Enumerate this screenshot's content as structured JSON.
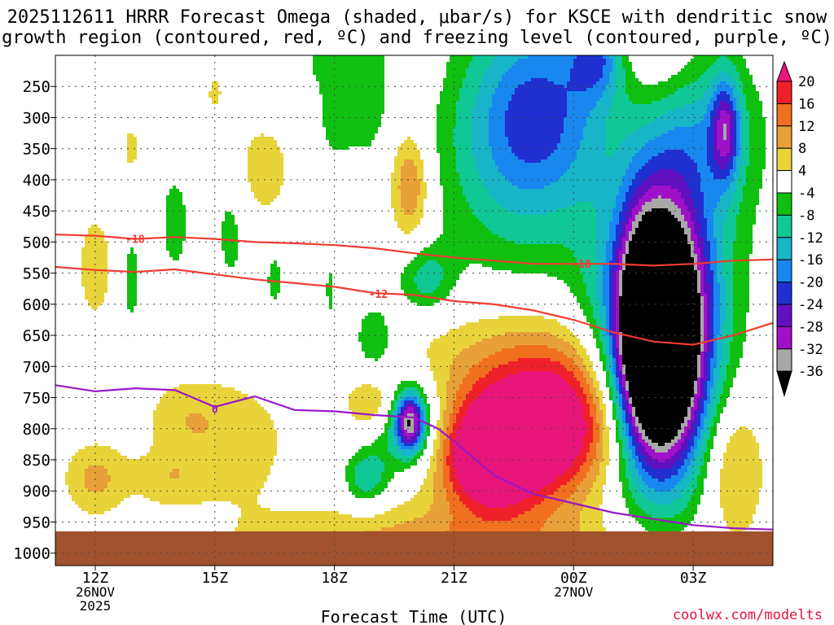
{
  "title": {
    "line1": "2025112611 HRRR Forecast Omega (shaded, μbar/s) for KSCE with dendritic snow",
    "line2": "growth region (contoured, red, ºC) and freezing level (contoured, purple, ºC)"
  },
  "credit": "coolwx.com/modelts",
  "chart_data": {
    "type": "heatmap",
    "title": "2025112611 HRRR Forecast Omega (shaded, μbar/s) for KSCE with dendritic snow growth region (contoured, red, ºC) and freezing level (contoured, purple, ºC)",
    "xlabel": "Forecast Time (UTC)",
    "ylabel": "",
    "x_ticks": [
      {
        "hour": 0,
        "label": "12Z",
        "sub1": "26NOV",
        "sub2": "2025"
      },
      {
        "hour": 3,
        "label": "15Z",
        "sub1": "",
        "sub2": ""
      },
      {
        "hour": 6,
        "label": "18Z",
        "sub1": "",
        "sub2": ""
      },
      {
        "hour": 9,
        "label": "21Z",
        "sub1": "",
        "sub2": ""
      },
      {
        "hour": 12,
        "label": "00Z",
        "sub1": "27NOV",
        "sub2": ""
      },
      {
        "hour": 15,
        "label": "03Z",
        "sub1": "",
        "sub2": ""
      }
    ],
    "xlim_hours": [
      -1,
      17
    ],
    "y_ticks": [
      250,
      300,
      350,
      400,
      450,
      500,
      550,
      600,
      650,
      700,
      750,
      800,
      850,
      900,
      950,
      1000
    ],
    "ylim_hpa": [
      200,
      1020
    ],
    "grid": true,
    "legend_position": "right colorbar",
    "colorbar": {
      "labels": [
        20,
        16,
        12,
        8,
        4,
        -4,
        -8,
        -12,
        -16,
        -20,
        -24,
        -28,
        -32,
        -36
      ],
      "colors": [
        "#e8157a",
        "#f02028",
        "#f07020",
        "#e8a038",
        "#e8d43a",
        "#ffffff",
        "#10c010",
        "#10c896",
        "#18b4c8",
        "#1888f0",
        "#2030d0",
        "#6010c0",
        "#a010c8",
        "#a8a8a8",
        "#000000"
      ]
    },
    "ground_color": "#a0522d",
    "surface_hpa": 965,
    "omega_blobs": [
      {
        "t": 0.0,
        "p": 540,
        "rt": 0.55,
        "rp": 105,
        "v": 6
      },
      {
        "t": 0.0,
        "p": 880,
        "rt": 0.8,
        "rp": 60,
        "v": 9
      },
      {
        "t": 1.8,
        "p": 880,
        "rt": 0.9,
        "rp": 45,
        "v": 6
      },
      {
        "t": 0.9,
        "p": 350,
        "rt": 0.3,
        "rp": 55,
        "v": 5
      },
      {
        "t": 3.0,
        "p": 260,
        "rt": 0.25,
        "rp": 40,
        "v": 5
      },
      {
        "t": 4.2,
        "p": 385,
        "rt": 0.85,
        "rp": 90,
        "v": 6
      },
      {
        "t": 3.5,
        "p": 820,
        "rt": 1.6,
        "rp": 110,
        "v": 6
      },
      {
        "t": 2.2,
        "p": 780,
        "rt": 1.0,
        "rp": 60,
        "v": 5
      },
      {
        "t": 8.1,
        "p": 230,
        "rt": 0.5,
        "rp": 45,
        "v": 5
      },
      {
        "t": 7.9,
        "p": 410,
        "rt": 0.5,
        "rp": 90,
        "v": 13
      },
      {
        "t": 7.0,
        "p": 760,
        "rt": 0.65,
        "rp": 50,
        "v": 11
      },
      {
        "t": 9.0,
        "p": 1000,
        "rt": 5.0,
        "rp": 80,
        "v": 12
      },
      {
        "t": 11.4,
        "p": 800,
        "rt": 2.1,
        "rp": 110,
        "v": 28
      },
      {
        "t": 9.9,
        "p": 850,
        "rt": 1.2,
        "rp": 80,
        "v": 26
      },
      {
        "t": 11.0,
        "p": 690,
        "rt": 3.5,
        "rp": 100,
        "v": 8
      },
      {
        "t": 13.0,
        "p": 580,
        "rt": 0.5,
        "rp": 200,
        "v": 5
      },
      {
        "t": 14.8,
        "p": 230,
        "rt": 1.7,
        "rp": 100,
        "v": 8
      },
      {
        "t": 14.0,
        "p": 180,
        "rt": 1.0,
        "rp": 60,
        "v": 6
      },
      {
        "t": 16.0,
        "p": 860,
        "rt": 0.8,
        "rp": 110,
        "v": 11
      },
      {
        "t": 16.9,
        "p": 200,
        "rt": 0.4,
        "rp": 30,
        "v": 5
      },
      {
        "t": 2.0,
        "p": 470,
        "rt": 0.35,
        "rp": 80,
        "v": -7
      },
      {
        "t": 0.9,
        "p": 560,
        "rt": 0.28,
        "rp": 90,
        "v": -6
      },
      {
        "t": 3.4,
        "p": 480,
        "rt": 0.4,
        "rp": 100,
        "v": -6
      },
      {
        "t": 4.5,
        "p": 560,
        "rt": 0.25,
        "rp": 50,
        "v": -6
      },
      {
        "t": 5.9,
        "p": 580,
        "rt": 0.2,
        "rp": 70,
        "v": -5
      },
      {
        "t": 6.8,
        "p": 240,
        "rt": 0.6,
        "rp": 130,
        "v": -7
      },
      {
        "t": 6.0,
        "p": 290,
        "rt": 0.45,
        "rp": 80,
        "v": -6
      },
      {
        "t": 5.7,
        "p": 200,
        "rt": 0.4,
        "rp": 45,
        "v": -6
      },
      {
        "t": 10.5,
        "p": 360,
        "rt": 2.0,
        "rp": 200,
        "v": -11
      },
      {
        "t": 11.2,
        "p": 280,
        "rt": 1.6,
        "rp": 150,
        "v": -14
      },
      {
        "t": 12.6,
        "p": 200,
        "rt": 0.7,
        "rp": 70,
        "v": -16
      },
      {
        "t": 15.3,
        "p": 280,
        "rt": 1.4,
        "rp": 160,
        "v": -14
      },
      {
        "t": 15.8,
        "p": 320,
        "rt": 0.35,
        "rp": 80,
        "v": -20
      },
      {
        "t": 8.3,
        "p": 560,
        "rt": 0.7,
        "rp": 55,
        "v": -10
      },
      {
        "t": 7.0,
        "p": 660,
        "rt": 0.6,
        "rp": 70,
        "v": -8
      },
      {
        "t": 7.8,
        "p": 790,
        "rt": 0.9,
        "rp": 75,
        "v": -14
      },
      {
        "t": 7.9,
        "p": 790,
        "rt": 0.35,
        "rp": 45,
        "v": -28
      },
      {
        "t": 6.8,
        "p": 880,
        "rt": 0.55,
        "rp": 45,
        "v": -12
      },
      {
        "t": 14.2,
        "p": 600,
        "rt": 1.8,
        "rp": 330,
        "v": -12
      },
      {
        "t": 14.1,
        "p": 640,
        "rt": 1.3,
        "rp": 220,
        "v": -30
      },
      {
        "t": 14.1,
        "p": 660,
        "rt": 0.95,
        "rp": 170,
        "v": -50
      }
    ],
    "contours": [
      {
        "name": "-18",
        "color": "#f03c30",
        "points": [
          [
            -1,
            488
          ],
          [
            0,
            490
          ],
          [
            1,
            495
          ],
          [
            2,
            492
          ],
          [
            3,
            495
          ],
          [
            4,
            500
          ],
          [
            5,
            502
          ],
          [
            6,
            505
          ],
          [
            7,
            510
          ],
          [
            8,
            518
          ],
          [
            9,
            525
          ],
          [
            10,
            530
          ],
          [
            11,
            535
          ],
          [
            12,
            535
          ],
          [
            13,
            535
          ],
          [
            14,
            538
          ],
          [
            15,
            535
          ],
          [
            16,
            530
          ],
          [
            17,
            528
          ]
        ],
        "labels": [
          [
            1.0,
            495
          ],
          [
            12.2,
            535
          ]
        ]
      },
      {
        "name": "-12",
        "color": "#f03c30",
        "points": [
          [
            -1,
            540
          ],
          [
            0,
            545
          ],
          [
            1,
            548
          ],
          [
            2,
            544
          ],
          [
            3,
            552
          ],
          [
            4,
            560
          ],
          [
            5,
            566
          ],
          [
            6,
            572
          ],
          [
            7,
            582
          ],
          [
            8,
            585
          ],
          [
            9,
            595
          ],
          [
            10,
            600
          ],
          [
            11,
            610
          ],
          [
            12,
            625
          ],
          [
            13,
            645
          ],
          [
            14,
            660
          ],
          [
            15,
            665
          ],
          [
            16,
            650
          ],
          [
            17,
            630
          ]
        ],
        "labels": [
          [
            7.1,
            583
          ]
        ]
      },
      {
        "name": "0",
        "color": "#9a18c8",
        "points": [
          [
            -1,
            730
          ],
          [
            0,
            740
          ],
          [
            1,
            735
          ],
          [
            2,
            738
          ],
          [
            3,
            765
          ],
          [
            4,
            748
          ],
          [
            5,
            770
          ],
          [
            6,
            772
          ],
          [
            7,
            778
          ],
          [
            8,
            782
          ],
          [
            8.6,
            800
          ],
          [
            9,
            820
          ],
          [
            10,
            875
          ],
          [
            11,
            905
          ],
          [
            12,
            920
          ],
          [
            13,
            935
          ],
          [
            14,
            945
          ],
          [
            15,
            955
          ],
          [
            16,
            960
          ],
          [
            17,
            962
          ]
        ],
        "labels": [
          [
            3.0,
            768
          ]
        ]
      }
    ]
  }
}
